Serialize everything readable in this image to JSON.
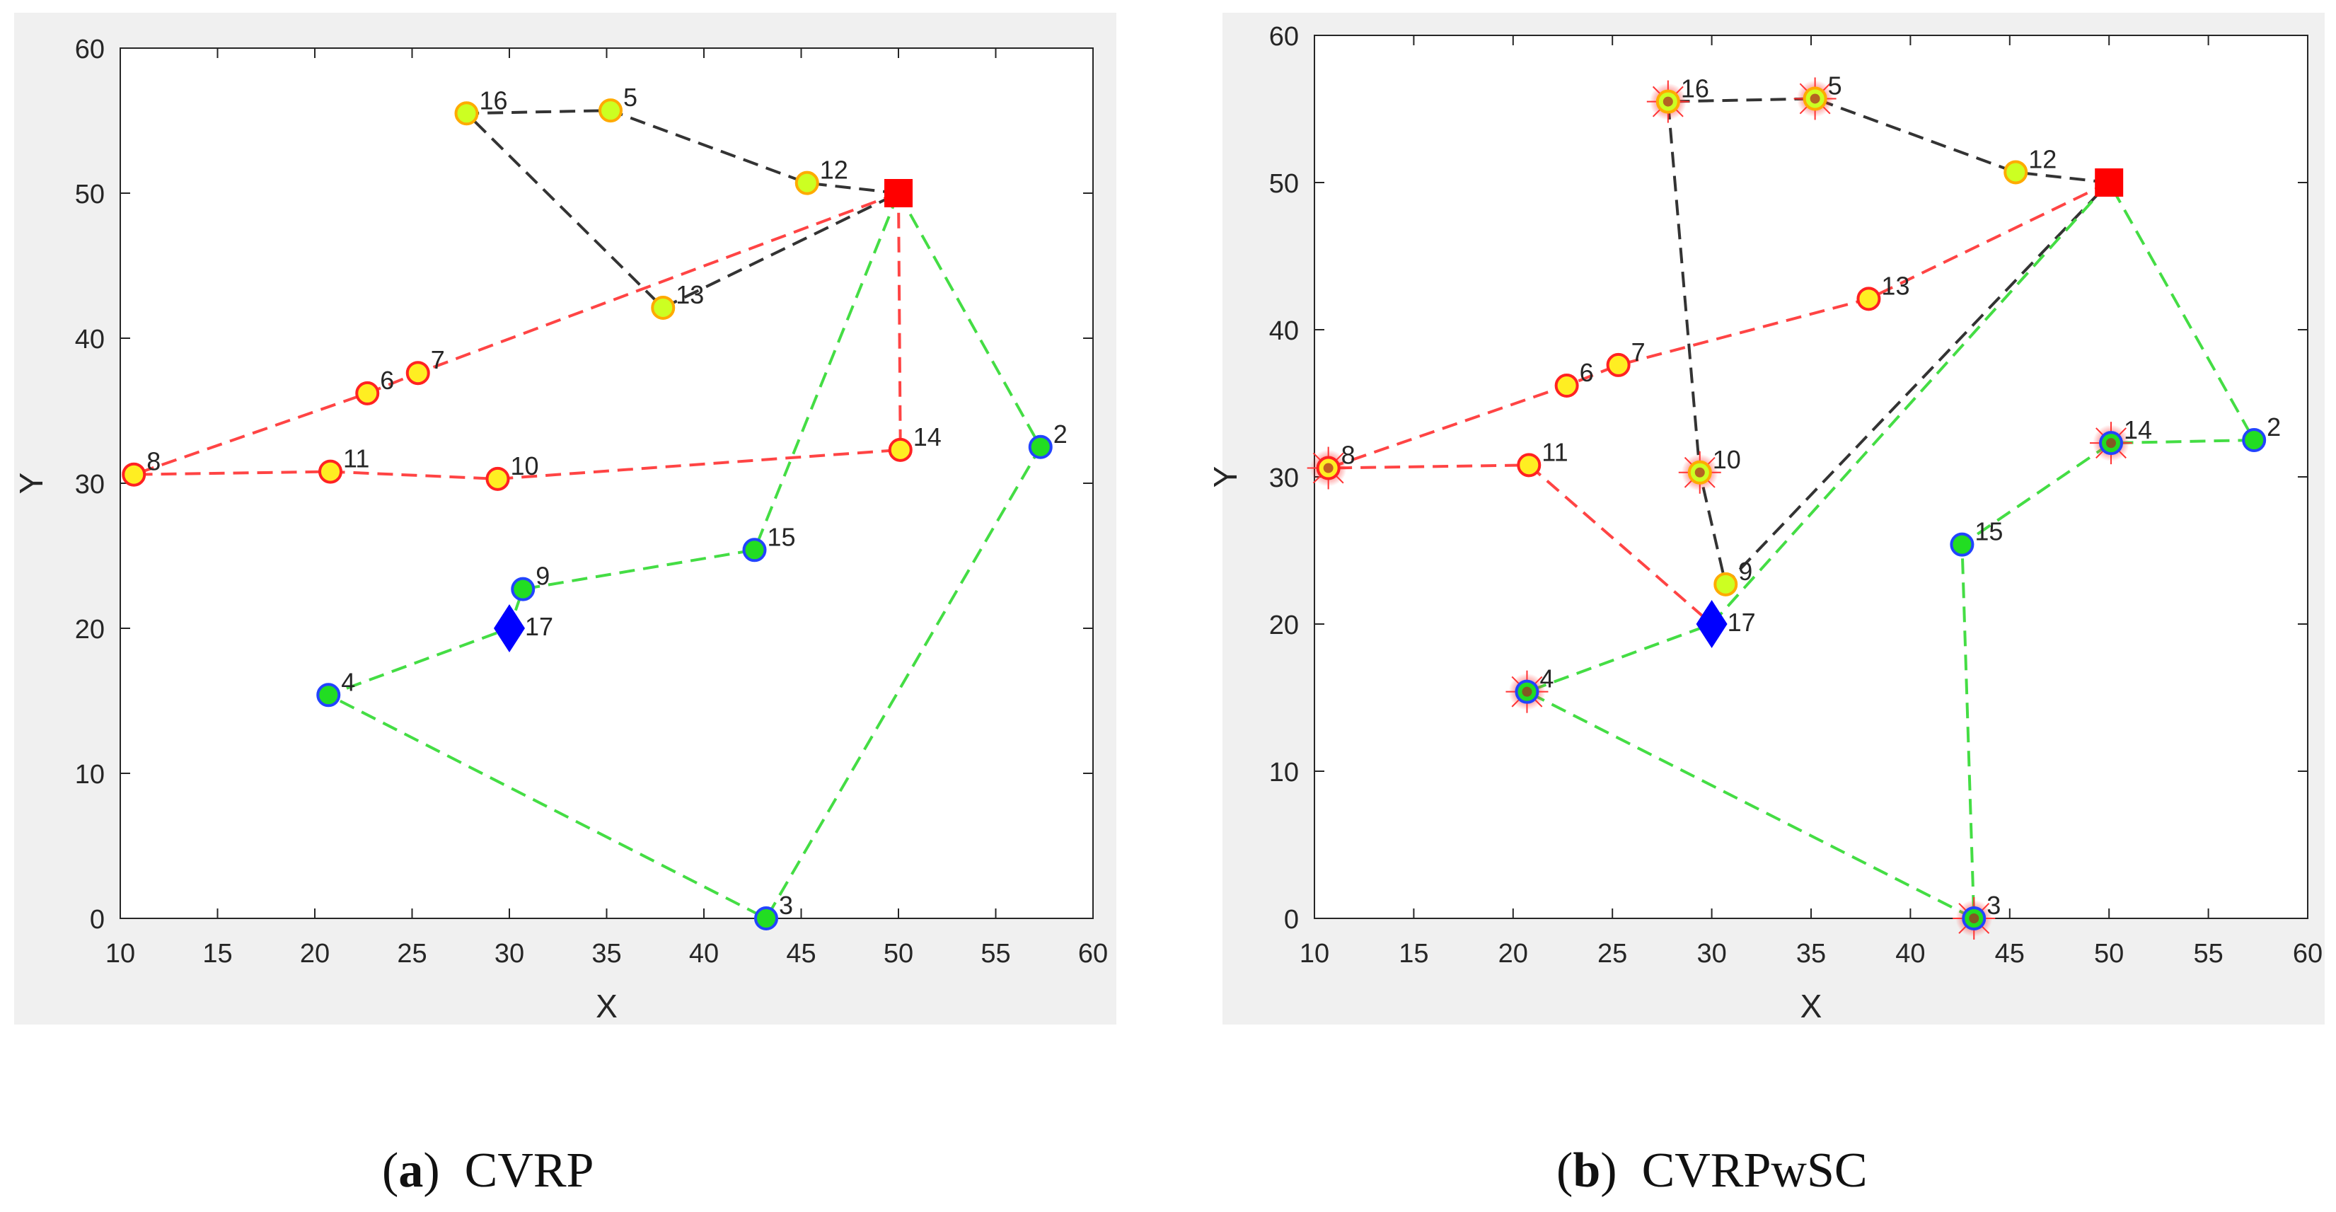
{
  "figure": {
    "captions": [
      {
        "open": "(",
        "letter": "a",
        "close": ")",
        "text": "CVRP"
      },
      {
        "open": "(",
        "letter": "b",
        "close": ")",
        "text": "CVRPwSC"
      }
    ]
  },
  "chart_data": [
    {
      "type": "scatter",
      "title": "CVRP",
      "xlabel": "X",
      "ylabel": "Y",
      "xlim": [
        10,
        60
      ],
      "ylim": [
        0,
        60
      ],
      "xticks": [
        10,
        15,
        20,
        25,
        30,
        35,
        40,
        45,
        50,
        55,
        60
      ],
      "yticks": [
        0,
        10,
        20,
        30,
        40,
        50,
        60
      ],
      "grid": false,
      "depots": [
        {
          "id": "1",
          "x": 50,
          "y": 50,
          "marker": "square",
          "color": "#ff0000",
          "label": ""
        },
        {
          "id": "17",
          "x": 30,
          "y": 20,
          "marker": "diamond",
          "color": "#0000ff",
          "label": "17"
        }
      ],
      "points": [
        {
          "id": "2",
          "x": 57.3,
          "y": 32.5,
          "type": "blue"
        },
        {
          "id": "3",
          "x": 43.2,
          "y": 0.0,
          "type": "blue"
        },
        {
          "id": "4",
          "x": 20.7,
          "y": 15.4,
          "type": "blue"
        },
        {
          "id": "5",
          "x": 35.2,
          "y": 55.7,
          "type": "yellow"
        },
        {
          "id": "6",
          "x": 22.7,
          "y": 36.2,
          "type": "orange"
        },
        {
          "id": "7",
          "x": 25.3,
          "y": 37.6,
          "type": "orange"
        },
        {
          "id": "8",
          "x": 10.7,
          "y": 30.6,
          "type": "orange"
        },
        {
          "id": "9",
          "x": 30.7,
          "y": 22.7,
          "type": "blue"
        },
        {
          "id": "10",
          "x": 29.4,
          "y": 30.3,
          "type": "orange"
        },
        {
          "id": "11",
          "x": 20.8,
          "y": 30.8,
          "type": "orange"
        },
        {
          "id": "12",
          "x": 45.3,
          "y": 50.7,
          "type": "yellow"
        },
        {
          "id": "13",
          "x": 37.9,
          "y": 42.1,
          "type": "yellow"
        },
        {
          "id": "14",
          "x": 50.1,
          "y": 32.3,
          "type": "orange"
        },
        {
          "id": "15",
          "x": 42.6,
          "y": 25.4,
          "type": "blue"
        },
        {
          "id": "16",
          "x": 27.8,
          "y": 55.5,
          "type": "yellow"
        }
      ],
      "routes": [
        {
          "name": "black",
          "color": "#333333",
          "path": [
            [
              50,
              50
            ],
            [
              45.3,
              50.7
            ],
            [
              35.2,
              55.7
            ],
            [
              27.8,
              55.5
            ],
            [
              37.9,
              42.1
            ],
            [
              50,
              50
            ]
          ]
        },
        {
          "name": "red",
          "color": "#ff4444",
          "path": [
            [
              50,
              50
            ],
            [
              25.3,
              37.6
            ],
            [
              22.7,
              36.2
            ],
            [
              10.7,
              30.6
            ],
            [
              20.8,
              30.8
            ],
            [
              29.4,
              30.3
            ],
            [
              50.1,
              32.3
            ],
            [
              50,
              50
            ]
          ]
        },
        {
          "name": "green",
          "color": "#44dd44",
          "path": [
            [
              50,
              50
            ],
            [
              57.3,
              32.5
            ],
            [
              43.2,
              0
            ],
            [
              20.7,
              15.4
            ],
            [
              30,
              20
            ],
            [
              30.7,
              22.7
            ],
            [
              42.6,
              25.4
            ],
            [
              50,
              50
            ]
          ]
        }
      ]
    },
    {
      "type": "scatter",
      "title": "CVRPwSC",
      "xlabel": "X",
      "ylabel": "Y",
      "xlim": [
        10,
        60
      ],
      "ylim": [
        0,
        60
      ],
      "xticks": [
        10,
        15,
        20,
        25,
        30,
        35,
        40,
        45,
        50,
        55,
        60
      ],
      "yticks": [
        0,
        10,
        20,
        30,
        40,
        50,
        60
      ],
      "grid": false,
      "depots": [
        {
          "id": "1",
          "x": 50,
          "y": 50,
          "marker": "square",
          "color": "#ff0000",
          "label": ""
        },
        {
          "id": "17",
          "x": 30,
          "y": 20,
          "marker": "diamond",
          "color": "#0000ff",
          "label": "17"
        }
      ],
      "points": [
        {
          "id": "2",
          "x": 57.3,
          "y": 32.5,
          "type": "blue"
        },
        {
          "id": "3",
          "x": 43.2,
          "y": 0.0,
          "type": "blue-star"
        },
        {
          "id": "4",
          "x": 20.7,
          "y": 15.4,
          "type": "blue-star"
        },
        {
          "id": "5",
          "x": 35.2,
          "y": 55.7,
          "type": "yellow-star"
        },
        {
          "id": "6",
          "x": 22.7,
          "y": 36.2,
          "type": "orange"
        },
        {
          "id": "7",
          "x": 25.3,
          "y": 37.6,
          "type": "orange"
        },
        {
          "id": "8",
          "x": 10.7,
          "y": 30.6,
          "type": "orange-star"
        },
        {
          "id": "9",
          "x": 30.7,
          "y": 22.7,
          "type": "yellow"
        },
        {
          "id": "10",
          "x": 29.4,
          "y": 30.3,
          "type": "yellow-star"
        },
        {
          "id": "11",
          "x": 20.8,
          "y": 30.8,
          "type": "orange"
        },
        {
          "id": "12",
          "x": 45.3,
          "y": 50.7,
          "type": "yellow"
        },
        {
          "id": "13",
          "x": 37.9,
          "y": 42.1,
          "type": "orange"
        },
        {
          "id": "14",
          "x": 50.1,
          "y": 32.3,
          "type": "blue-star"
        },
        {
          "id": "15",
          "x": 42.6,
          "y": 25.4,
          "type": "blue"
        },
        {
          "id": "16",
          "x": 27.8,
          "y": 55.5,
          "type": "yellow-star"
        }
      ],
      "routes": [
        {
          "name": "black",
          "color": "#333333",
          "path": [
            [
              50,
              50
            ],
            [
              45.3,
              50.7
            ],
            [
              35.2,
              55.7
            ],
            [
              27.8,
              55.5
            ],
            [
              29.4,
              30.3
            ],
            [
              30.7,
              22.7
            ],
            [
              50,
              50
            ]
          ]
        },
        {
          "name": "red",
          "color": "#ff4444",
          "path": [
            [
              50,
              50
            ],
            [
              37.9,
              42.1
            ],
            [
              25.3,
              37.6
            ],
            [
              22.7,
              36.2
            ],
            [
              10.7,
              30.6
            ],
            [
              20.8,
              30.8
            ],
            [
              30,
              20
            ]
          ]
        },
        {
          "name": "green",
          "color": "#44dd44",
          "path": [
            [
              30,
              20
            ],
            [
              50,
              50
            ],
            [
              57.3,
              32.5
            ],
            [
              50.1,
              32.3
            ],
            [
              42.6,
              25.4
            ],
            [
              43.2,
              0
            ],
            [
              20.7,
              15.4
            ],
            [
              30,
              20
            ]
          ]
        }
      ]
    }
  ]
}
